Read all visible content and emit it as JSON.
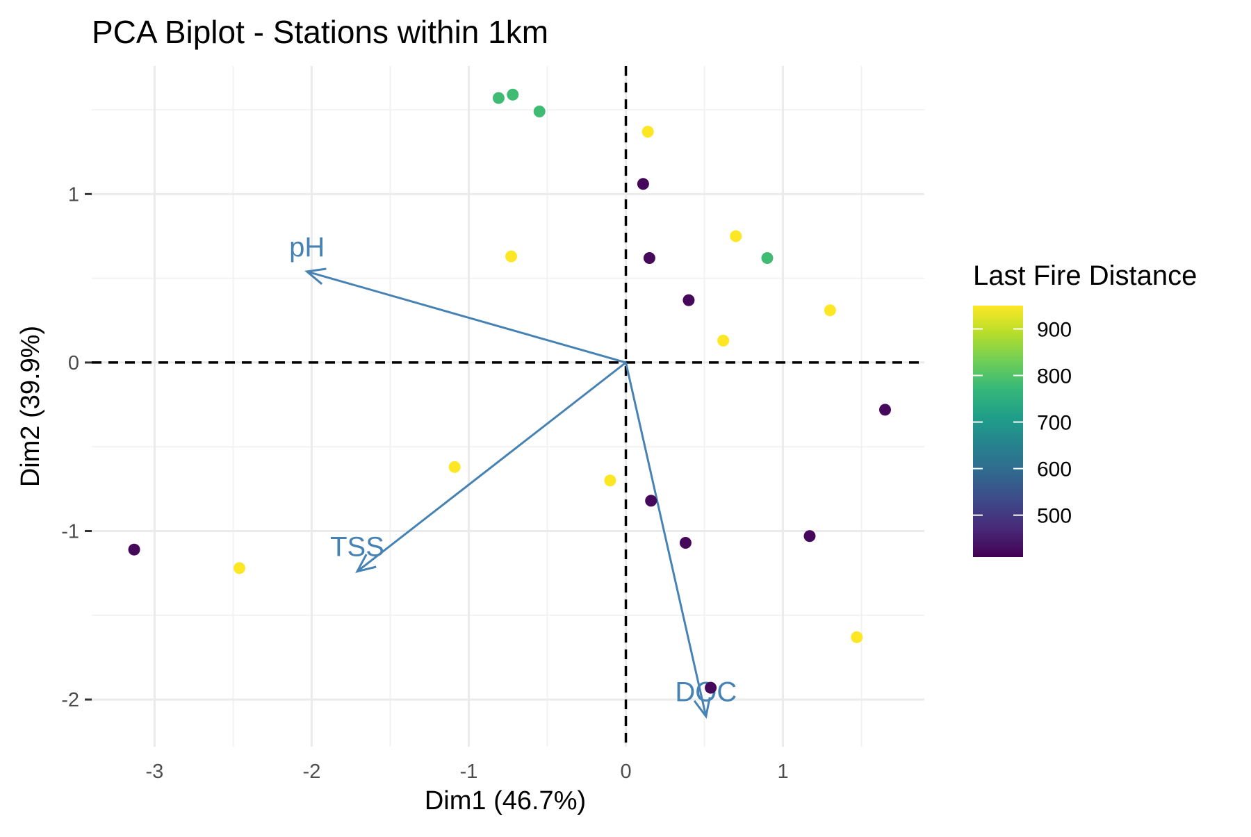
{
  "chart_data": {
    "type": "scatter",
    "title": "PCA Biplot - Stations within 1km",
    "xlabel": "Dim1 (46.7%)",
    "ylabel": "Dim2 (39.9%)",
    "xlim": [
      -3.4,
      1.9
    ],
    "ylim": [
      -2.28,
      1.76
    ],
    "x_ticks": [
      -3,
      -2,
      -1,
      0,
      1
    ],
    "y_ticks": [
      -2,
      -1,
      0,
      1
    ],
    "x_tick_labels": [
      "-3",
      "-2",
      "-1",
      "0",
      "1"
    ],
    "y_tick_labels": [
      "-2",
      "-1",
      "0",
      "1"
    ],
    "grid": true,
    "reference_lines": {
      "x": 0,
      "y": 0,
      "style": "dashed"
    },
    "color_scale": {
      "name": "viridis",
      "title": "Last Fire Distance",
      "min": 410,
      "max": 950,
      "breaks": [
        500,
        600,
        700,
        800,
        900
      ],
      "stops": [
        "#440154",
        "#482878",
        "#3e4989",
        "#31688e",
        "#26828e",
        "#1f9e89",
        "#35b779",
        "#6ece58",
        "#b5de2b",
        "#fde725"
      ]
    },
    "points": [
      {
        "x": -0.81,
        "y": 1.57,
        "color_value": 780
      },
      {
        "x": -0.72,
        "y": 1.59,
        "color_value": 780
      },
      {
        "x": -0.55,
        "y": 1.49,
        "color_value": 780
      },
      {
        "x": 0.14,
        "y": 1.37,
        "color_value": 950
      },
      {
        "x": 0.11,
        "y": 1.06,
        "color_value": 420
      },
      {
        "x": -0.73,
        "y": 0.63,
        "color_value": 950
      },
      {
        "x": 0.15,
        "y": 0.62,
        "color_value": 420
      },
      {
        "x": 0.7,
        "y": 0.75,
        "color_value": 950
      },
      {
        "x": 0.9,
        "y": 0.62,
        "color_value": 780
      },
      {
        "x": 0.4,
        "y": 0.37,
        "color_value": 420
      },
      {
        "x": 1.3,
        "y": 0.31,
        "color_value": 950
      },
      {
        "x": 0.62,
        "y": 0.13,
        "color_value": 950
      },
      {
        "x": 1.65,
        "y": -0.28,
        "color_value": 420
      },
      {
        "x": -1.09,
        "y": -0.62,
        "color_value": 950
      },
      {
        "x": -0.1,
        "y": -0.7,
        "color_value": 950
      },
      {
        "x": 0.16,
        "y": -0.82,
        "color_value": 420
      },
      {
        "x": 0.38,
        "y": -1.07,
        "color_value": 420
      },
      {
        "x": 1.17,
        "y": -1.03,
        "color_value": 420
      },
      {
        "x": -3.13,
        "y": -1.11,
        "color_value": 420
      },
      {
        "x": -2.46,
        "y": -1.22,
        "color_value": 950
      },
      {
        "x": 1.47,
        "y": -1.63,
        "color_value": 950
      },
      {
        "x": 0.54,
        "y": -1.93,
        "color_value": 420
      }
    ],
    "arrows": [
      {
        "label": "pH",
        "x": -2.03,
        "y": 0.54
      },
      {
        "label": "TSS",
        "x": -1.71,
        "y": -1.24
      },
      {
        "label": "DOC",
        "x": 0.51,
        "y": -2.1
      }
    ],
    "arrow_color": "#4682b4"
  }
}
